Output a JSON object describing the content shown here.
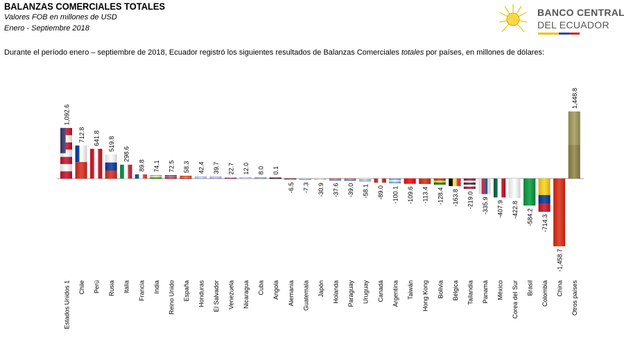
{
  "header": {
    "title": "BALANZAS COMERCIALES TOTALES",
    "subtitle1": "Valores FOB en millones de USD",
    "subtitle2": "Enero -  Septiembre 2018",
    "description_pre": "Durante el período enero – septiembre de 2018, Ecuador registró los siguientes resultados de Balanzas Comerciales ",
    "description_em": "totales",
    "description_post": " por países, en millones de dólares:"
  },
  "logo": {
    "line1": "BANCO CENTRAL",
    "line2": "DEL ECUADOR"
  },
  "chart_data": {
    "type": "bar",
    "title": "Balanzas Comerciales Totales por países",
    "xlabel": "",
    "ylabel": "millones de USD",
    "ylim": [
      -1458.7,
      1448.8
    ],
    "categories": [
      "Estados Unidos 1",
      "Chile",
      "Perú",
      "Rusia",
      "Italia",
      "Francia",
      "India",
      "Reino Unido",
      "España",
      "Honduras",
      "El Salvador",
      "Venezuela",
      "Nicaragua",
      "Cuba",
      "Angola",
      "Alemania",
      "Guatemala",
      "Japón",
      "Holanda",
      "Paraguay",
      "Uruguay",
      "Canadá",
      "Argentina",
      "Taiwán",
      "Hong Kong",
      "Bolivia",
      "Bélgica",
      "Tailandia",
      "Panamá",
      "México",
      "Corea del Sur",
      "Brasil",
      "Colombia",
      "China",
      "Otros países"
    ],
    "values": [
      1092.6,
      712.8,
      641.8,
      519.8,
      298.6,
      89.8,
      74.1,
      72.5,
      58.3,
      42.4,
      39.7,
      22.7,
      12.0,
      8.0,
      0.1,
      -6.5,
      -7.3,
      -30.9,
      -37.6,
      -39.0,
      -58.1,
      -89.0,
      -100.1,
      -109.6,
      -113.4,
      -128.4,
      -163.8,
      -219.0,
      -335.9,
      -407.9,
      -422.8,
      -584.2,
      -714.3,
      -1458.7,
      1448.8
    ],
    "labels": [
      "1,092.6",
      "712.8",
      "641.8",
      "519.8",
      "298.6",
      "89.8",
      "74.1",
      "72.5",
      "58.3",
      "42.4",
      "39.7",
      "22.7",
      "12.0",
      "8.0",
      "0.1",
      "-6.5",
      "-7.3",
      "-30.9",
      "-37.6",
      "-39.0",
      "-58.1",
      "-89.0",
      "-100.1",
      "-109.6",
      "-113.4",
      "-128.4",
      "-163.8",
      "-219.0",
      "-335.9",
      "-407.9",
      "-422.8",
      "-584.2",
      "-714.3",
      "-1,458.7",
      "1,448.8"
    ],
    "flags": [
      [
        "h",
        "#c8102e",
        "#ffffff",
        "#c8102e",
        "#ffffff",
        "#c8102e",
        "#ffffff",
        "#c8102e"
      ],
      [
        "h",
        "#ffffff",
        "#d52b1e"
      ],
      [
        "v",
        "#d91023",
        "#ffffff",
        "#d91023"
      ],
      [
        "h",
        "#ffffff",
        "#0039a6",
        "#d52b1e"
      ],
      [
        "v",
        "#009246",
        "#ffffff",
        "#ce2b37"
      ],
      [
        "v",
        "#0055a4",
        "#ffffff",
        "#ef4135"
      ],
      [
        "h",
        "#ff9933",
        "#ffffff",
        "#138808"
      ],
      [
        "h",
        "#c8102e",
        "#9aa6c8",
        "#c8102e"
      ],
      [
        "h",
        "#c60b1e",
        "#ffc400",
        "#c60b1e"
      ],
      [
        "h",
        "#8fa6d8",
        "#ffffff",
        "#8fa6d8"
      ],
      [
        "h",
        "#7d8fd0",
        "#ffffff",
        "#7d8fd0"
      ],
      [
        "h",
        "#e0c000",
        "#2040a0",
        "#cf142b"
      ],
      [
        "h",
        "#6f8fd8",
        "#ffffff",
        "#6f8fd8"
      ],
      [
        "h",
        "#3050a0",
        "#ffffff",
        "#3050a0"
      ],
      [
        "h",
        "#cc0000",
        "#000000"
      ],
      [
        "h",
        "#000000",
        "#dd0000",
        "#ffce00"
      ],
      [
        "h",
        "#4997d0",
        "#ffffff",
        "#4997d0"
      ],
      [
        "h",
        "#ffffff",
        "#e07080",
        "#ffffff"
      ],
      [
        "h",
        "#ae1c28",
        "#ffffff",
        "#21468b"
      ],
      [
        "h",
        "#d52b1e",
        "#ffffff",
        "#0038a8"
      ],
      [
        "h",
        "#ffffff",
        "#7b9be0",
        "#ffffff",
        "#7b9be0"
      ],
      [
        "v",
        "#d52b1e",
        "#ffffff",
        "#d52b1e"
      ],
      [
        "h",
        "#74acdf",
        "#ffffff",
        "#74acdf"
      ],
      [
        "h",
        "#fe0000",
        "#fe0000"
      ],
      [
        "h",
        "#de2910",
        "#de2910"
      ],
      [
        "h",
        "#d52b1e",
        "#f9e300",
        "#007934"
      ],
      [
        "v",
        "#000000",
        "#fdda24",
        "#ef3340"
      ],
      [
        "h",
        "#a51931",
        "#ffffff",
        "#2d2a4a",
        "#ffffff",
        "#a51931"
      ],
      [
        "v",
        "#ffffff",
        "#d21034",
        "#005293",
        "#ffffff"
      ],
      [
        "v",
        "#006847",
        "#ffffff",
        "#ce1126"
      ],
      [
        "v",
        "#ffffff",
        "#ffffff"
      ],
      [
        "v",
        "#009c3b",
        "#009c3b"
      ],
      [
        "h",
        "#fcd116",
        "#fcd116",
        "#003893",
        "#ce1126"
      ],
      [
        "h",
        "#de2910",
        "#de2910"
      ],
      [
        "h",
        "#a39a5a",
        "#8e8444"
      ]
    ],
    "colors": {
      "axis": "#999999",
      "otros": "#9c9355"
    }
  }
}
